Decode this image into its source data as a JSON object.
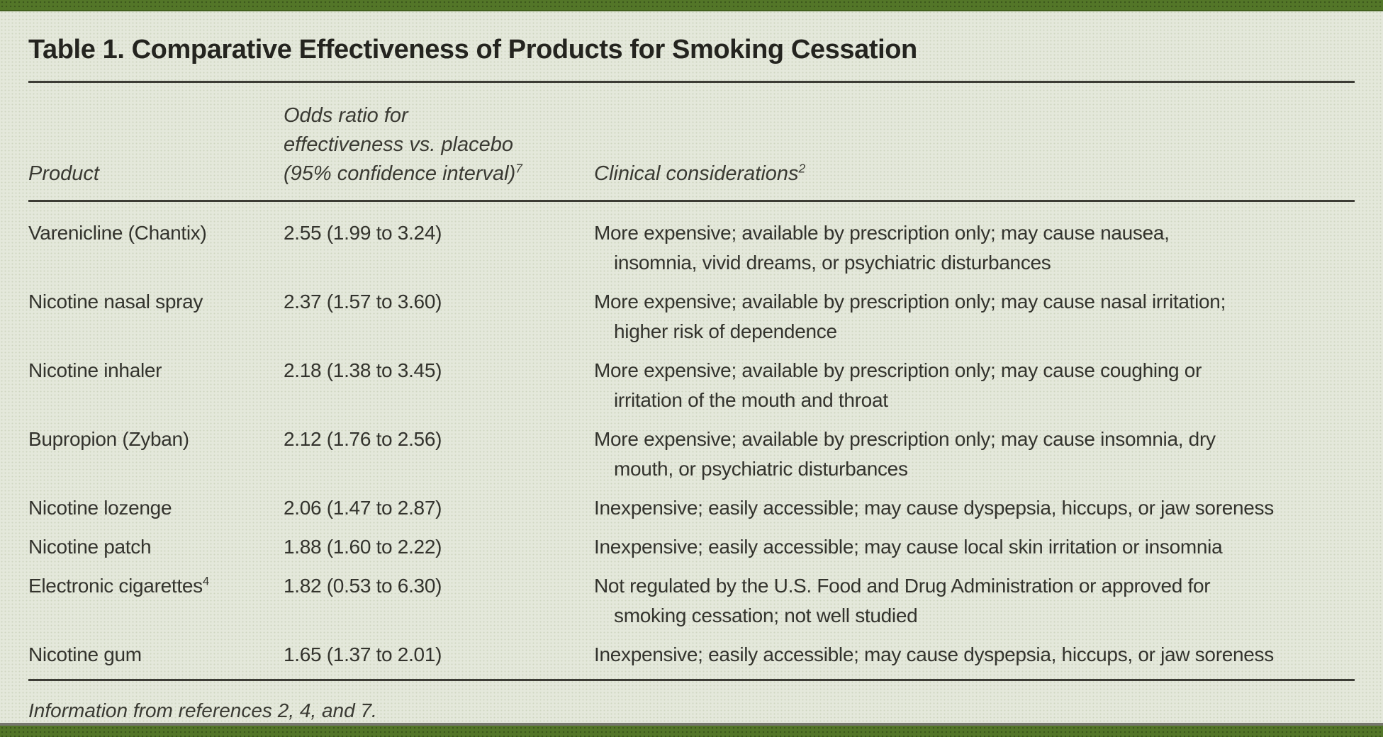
{
  "title": "Table 1. Comparative Effectiveness of Products for Smoking Cessation",
  "header": {
    "product": "Product",
    "odds_line1": "Odds ratio for",
    "odds_line2": "effectiveness vs. placebo",
    "odds_line3": "(95% confidence interval)",
    "odds_sup": "7",
    "clinical": "Clinical considerations",
    "clinical_sup": "2"
  },
  "rows": [
    {
      "product": "Varenicline (Chantix)",
      "product_sup": "",
      "odds": "2.55 (1.99 to 3.24)",
      "considerations_line1": "More expensive; available by prescription only; may cause nausea,",
      "considerations_line2": "insomnia, vivid dreams, or psychiatric disturbances"
    },
    {
      "product": "Nicotine nasal spray",
      "product_sup": "",
      "odds": "2.37 (1.57 to 3.60)",
      "considerations_line1": "More expensive; available by prescription only; may cause nasal irritation;",
      "considerations_line2": "higher risk of dependence"
    },
    {
      "product": "Nicotine inhaler",
      "product_sup": "",
      "odds": "2.18 (1.38 to 3.45)",
      "considerations_line1": "More expensive; available by prescription only; may cause coughing or",
      "considerations_line2": "irritation of the mouth and throat"
    },
    {
      "product": "Bupropion (Zyban)",
      "product_sup": "",
      "odds": "2.12 (1.76 to 2.56)",
      "considerations_line1": "More expensive; available by prescription only; may cause insomnia, dry",
      "considerations_line2": "mouth, or psychiatric disturbances"
    },
    {
      "product": "Nicotine lozenge",
      "product_sup": "",
      "odds": "2.06 (1.47 to 2.87)",
      "considerations_line1": "Inexpensive; easily accessible; may cause dyspepsia, hiccups, or jaw soreness",
      "considerations_line2": ""
    },
    {
      "product": "Nicotine patch",
      "product_sup": "",
      "odds": "1.88 (1.60 to 2.22)",
      "considerations_line1": "Inexpensive; easily accessible; may cause local skin irritation or insomnia",
      "considerations_line2": ""
    },
    {
      "product": "Electronic cigarettes",
      "product_sup": "4",
      "odds": "1.82 (0.53 to 6.30)",
      "considerations_line1": "Not regulated by the U.S. Food and Drug Administration or approved for",
      "considerations_line2": "smoking cessation; not well studied"
    },
    {
      "product": "Nicotine gum",
      "product_sup": "",
      "odds": "1.65 (1.37 to 2.01)",
      "considerations_line1": "Inexpensive; easily accessible; may cause dyspepsia, hiccups, or jaw soreness",
      "considerations_line2": ""
    }
  ],
  "footnote": "Information from references 2, 4, and 7.",
  "colors": {
    "band_green": "#537628",
    "background_sage": "#e4e8db",
    "rule_dark": "#3c3c35",
    "text_dark": "#33332d"
  }
}
